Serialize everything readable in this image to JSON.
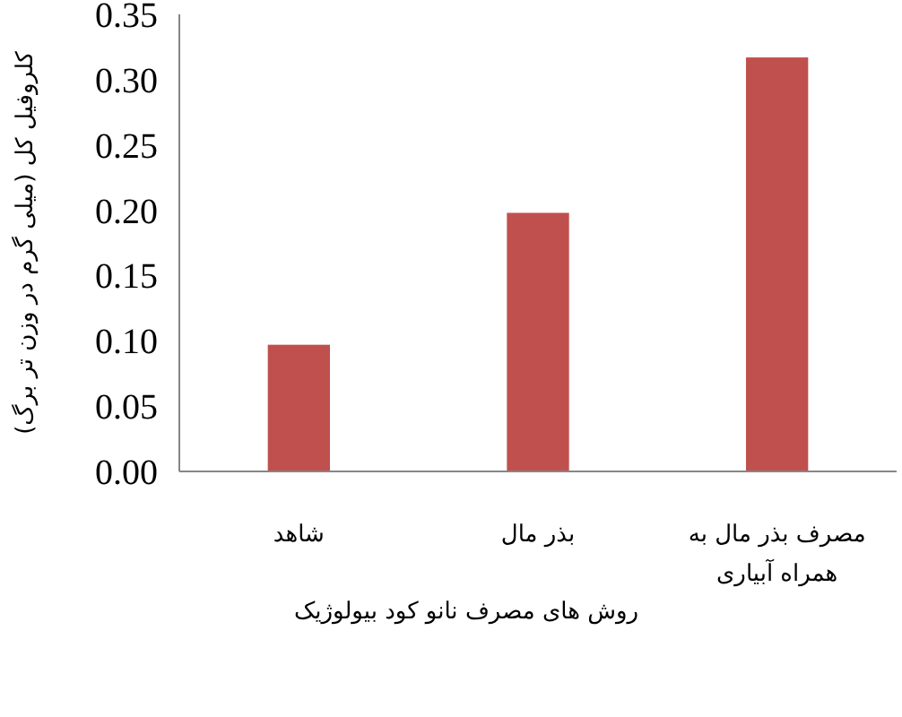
{
  "chart_data": {
    "type": "bar",
    "categories": [
      "شاهد",
      "بذر مال",
      "مصرف بذر مال به همراه آبیاری"
    ],
    "values": [
      0.097,
      0.198,
      0.317
    ],
    "color": "#c0504d",
    "xlabel": "روش های مصرف نانو کود بیولوژیک",
    "ylabel": "کلروفیل کل (میلی گرم در وزن تر برگ)",
    "ylim": [
      0,
      0.35
    ],
    "yticks": [
      {
        "value": 0,
        "label": "0.00"
      },
      {
        "value": 0.05,
        "label": "0.05"
      },
      {
        "value": 0.1,
        "label": "0.10"
      },
      {
        "value": 0.15,
        "label": "0.15"
      },
      {
        "value": 0.2,
        "label": "0.20"
      },
      {
        "value": 0.25,
        "label": "0.25"
      },
      {
        "value": 0.3,
        "label": "0.30"
      },
      {
        "value": 0.35,
        "label": "0.35"
      }
    ]
  }
}
